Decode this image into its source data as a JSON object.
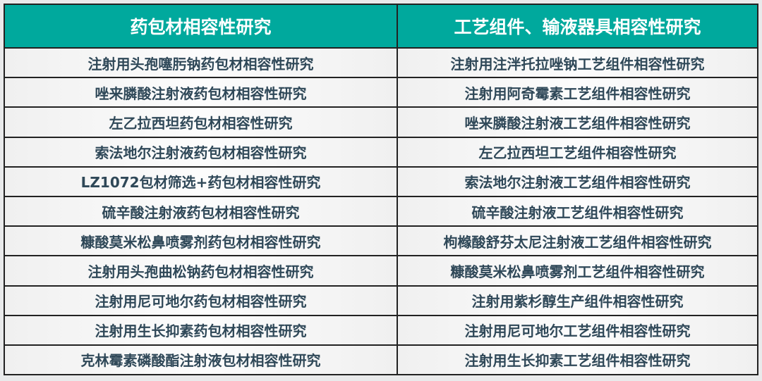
{
  "header": {
    "left": "药包材相容性研究",
    "right": "工艺组件、输液器具相容性研究"
  },
  "rows": [
    [
      "注射用头孢噻肟钠药包材相容性研究",
      "注射用注泮托拉唑钠工艺组件相容性研究"
    ],
    [
      "唑来膦酸注射液药包材相容性研究",
      "注射用阿奇霉素工艺组件相容性研究"
    ],
    [
      "左乙拉西坦药包材相容性研究",
      "唑来膦酸注射液工艺组件相容性研究"
    ],
    [
      "索法地尔注射液药包材相容性研究",
      "左乙拉西坦工艺组件相容性研究"
    ],
    [
      "LZ1072包材筛选+药包材相容性研究",
      "索法地尔注射液工艺组件相容性研究"
    ],
    [
      "硫辛酸注射液药包材相容性研究",
      "硫辛酸注射液工艺组件相容性研究"
    ],
    [
      "糠酸莫米松鼻喷雾剂药包材相容性研究",
      "枸橼酸舒芬太尼注射液工艺组件相容性研究"
    ],
    [
      "注射用头孢曲松钠药包材相容性研究",
      "糠酸莫米松鼻喷雾剂工艺组件相容性研究"
    ],
    [
      "注射用尼可地尔药包材相容性研究",
      "注射用紫杉醇生产组件相容性研究"
    ],
    [
      "注射用生长抑素药包材相容性研究",
      "注射用尼可地尔工艺组件相容性研究"
    ],
    [
      "克林霉素磷酸酯注射液包材相容性研究",
      "注射用生长抑素工艺组件相容性研究"
    ]
  ],
  "colors": {
    "header_bg": "#00a99d",
    "text": "#2f4858"
  }
}
